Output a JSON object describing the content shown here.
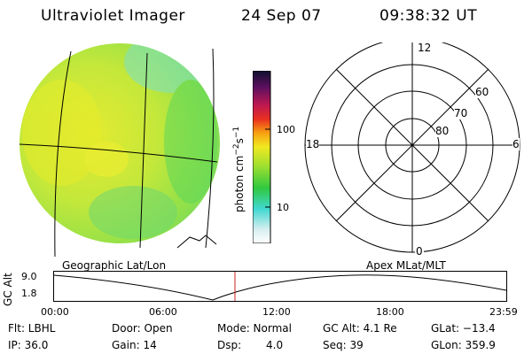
{
  "header": {
    "instrument": "Ultraviolet Imager",
    "date": "24 Sep 07",
    "time": "09:38:32 UT"
  },
  "colorbar": {
    "unit": "photon cm",
    "unit_exp1": "−2",
    "unit_mid": "s",
    "unit_exp2": "−1",
    "ticks": [
      "100",
      "10"
    ]
  },
  "polar_plot": {
    "mlt_labels": {
      "top": "12",
      "left": "18",
      "right": "6",
      "bottom": "0"
    },
    "lat_labels": [
      "60",
      "70",
      "80"
    ]
  },
  "panel_labels": {
    "geo": "Geographic Lat/Lon",
    "apex": "Apex MLat/MLT"
  },
  "altitude_plot": {
    "ylabel": "GC Alt",
    "yticks": [
      "9.0",
      "1.8"
    ],
    "xticks": [
      "00:00",
      "06:00",
      "12:00",
      "18:00",
      "23:59"
    ]
  },
  "info": {
    "flt": "Flt: LBHL",
    "ip": "IP: 36.0",
    "door": "Door: Open",
    "gain": "Gain: 14",
    "mode": "Mode: Normal",
    "dsp_label": "Dsp:",
    "dsp_value": "4.0",
    "gcalt": "GC Alt: 4.1 Re",
    "seq": "Seq: 39",
    "glat": "GLat: −13.4",
    "glon": "GLon: 359.9"
  },
  "colors": {
    "disk_main": "#b8e63a",
    "disk_green": "#5fd85a",
    "disk_yellow": "#e6ec2a",
    "disk_cyan": "#7de0c8",
    "marker_red": "#cc2222"
  }
}
